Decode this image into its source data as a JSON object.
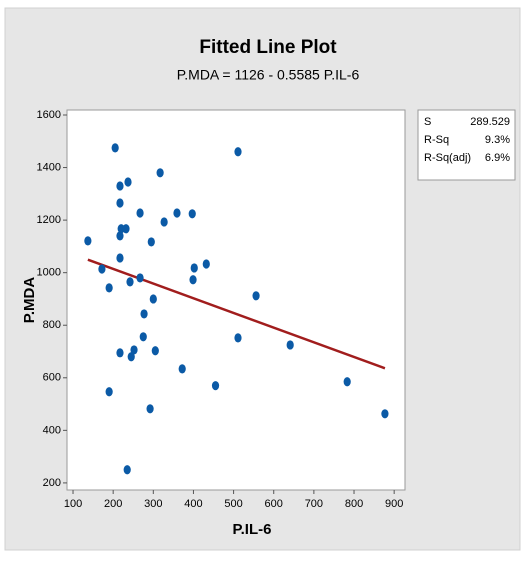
{
  "chart_data": {
    "type": "scatter",
    "title": "Fitted Line Plot",
    "subtitle": "P.MDA = 1126 - 0.5585 P.IL-6",
    "x_label": "P.IL-6",
    "y_label": "P.MDA",
    "color": "#0b5aa6",
    "fit": {
      "intercept": 1126,
      "slope": -0.5585,
      "color": "#a11d1d"
    },
    "x": [
      137,
      172,
      190,
      190,
      205,
      217,
      237,
      217,
      220,
      217,
      232,
      217,
      217,
      242,
      267,
      267,
      252,
      245,
      275,
      277,
      295,
      300,
      305,
      292,
      235,
      317,
      327,
      359,
      372,
      397,
      402,
      399,
      432,
      455,
      511,
      511,
      556,
      641,
      783,
      877
    ],
    "values": [
      1121,
      1014,
      942,
      547,
      1475,
      1330,
      1345,
      1265,
      1167,
      1140,
      1167,
      1056,
      695,
      965,
      980,
      1227,
      706,
      680,
      756,
      843,
      1117,
      900,
      703,
      482,
      250,
      1380,
      1193,
      1227,
      634,
      1224,
      1018,
      973,
      1033,
      570,
      1460,
      752,
      912,
      725,
      585,
      463
    ],
    "xlim": [
      85,
      927
    ],
    "ylim": [
      173,
      1619
    ],
    "xticks": [
      100,
      200,
      300,
      400,
      500,
      600,
      700,
      800,
      900
    ],
    "yticks": [
      200,
      400,
      600,
      800,
      1000,
      1200,
      1400,
      1600
    ],
    "stats": [
      [
        "S",
        "289.529"
      ],
      [
        "R-Sq",
        "9.3%"
      ],
      [
        "R-Sq(adj)",
        "6.9%"
      ]
    ]
  }
}
